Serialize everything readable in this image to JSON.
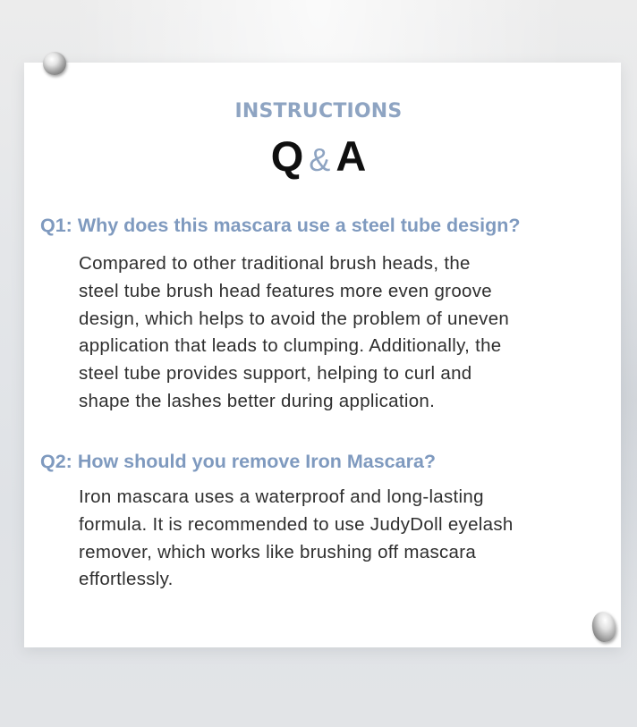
{
  "header": {
    "eyebrow": "INSTRUCTIONS",
    "title_q": "Q",
    "title_amp": "&",
    "title_a": "A"
  },
  "faq": [
    {
      "question": "Q1: Why does this mascara use a steel tube design?",
      "answer_lines": [
        "Compared to other traditional brush heads, the",
        "steel tube brush head features more even groove",
        "design, which helps to avoid the problem of uneven",
        "application that leads to clumping. Additionally, the",
        "steel tube provides support, helping to curl and",
        "shape the lashes better during application."
      ]
    },
    {
      "question": "Q2: How should you remove Iron Mascara?",
      "answer_lines": [
        "Iron mascara uses a waterproof and long-lasting",
        "formula. It is recommended to use JudyDoll eyelash",
        "remover, which works like brushing off mascara",
        "effortlessly."
      ]
    }
  ],
  "colors": {
    "accent": "#8ea4c2",
    "question": "#7f9abf",
    "body_text": "#2f2f2f",
    "title": "#0f0f0f"
  },
  "icons": {
    "pin_top": "silver-pushpin-icon",
    "pin_bottom": "silver-pushpin-icon"
  }
}
